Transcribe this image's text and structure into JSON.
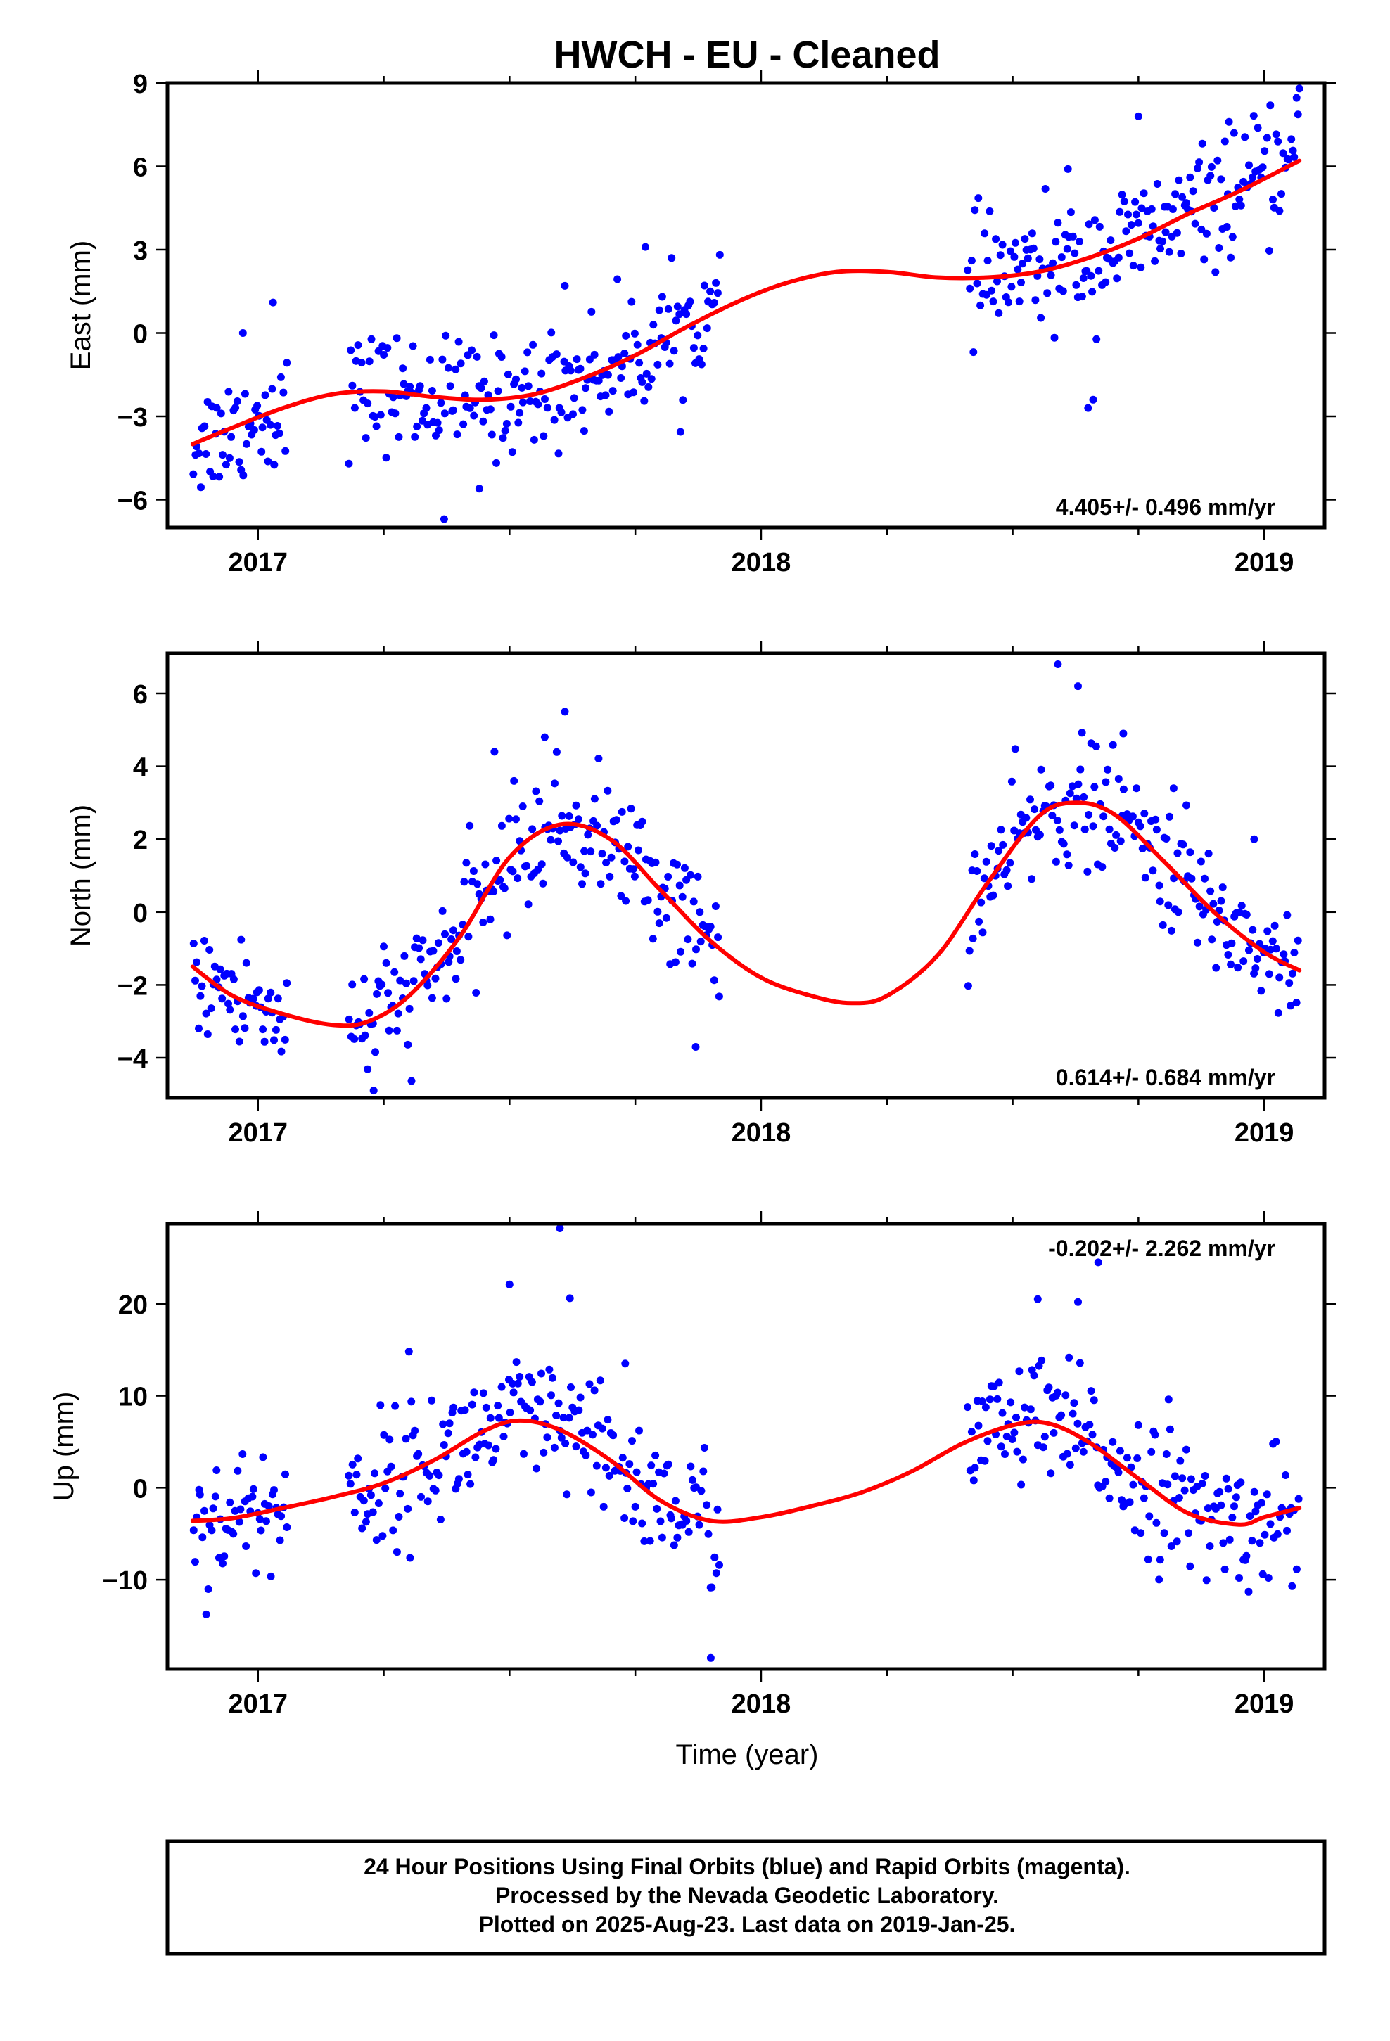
{
  "chart_data": {
    "title": "HWCH  - EU - Cleaned",
    "type": "scatter",
    "xlabel": "Time (year)",
    "xlim": [
      2016.82,
      2019.12
    ],
    "xticks": [
      2017,
      2018,
      2019
    ],
    "xtick_labels": [
      "2017",
      "2018",
      "2019"
    ],
    "colors": {
      "points": "#0000ff",
      "fit": "#ff0000",
      "frame": "#000000"
    },
    "panels": [
      {
        "id": "east",
        "ylabel": "East (mm)",
        "ylim": [
          -7,
          9
        ],
        "yticks": [
          -6,
          -3,
          0,
          3,
          6,
          9
        ],
        "ytick_labels": [
          "−6",
          "−3",
          "0",
          "3",
          "6",
          "9"
        ],
        "rate_label": "4.405+/- 0.496 mm/yr",
        "rate_position": "bottom-right",
        "data_segments": [
          [
            2016.87,
            2017.06
          ],
          [
            2017.18,
            2017.92
          ],
          [
            2018.41,
            2019.07
          ]
        ],
        "scatter_sd": 1.05,
        "outliers": [
          [
            2016.97,
            0.0
          ],
          [
            2017.03,
            1.1
          ],
          [
            2017.37,
            -6.7
          ],
          [
            2017.61,
            1.7
          ],
          [
            2017.77,
            3.1
          ],
          [
            2018.61,
            5.9
          ],
          [
            2018.65,
            -2.7
          ],
          [
            2018.75,
            7.8
          ],
          [
            2018.93,
            7.6
          ],
          [
            2019.07,
            8.8
          ],
          [
            2018.66,
            -2.4
          ],
          [
            2017.44,
            -5.6
          ]
        ],
        "fit": {
          "x": [
            2016.87,
            2016.95,
            2017.05,
            2017.15,
            2017.25,
            2017.35,
            2017.45,
            2017.55,
            2017.65,
            2017.75,
            2017.85,
            2017.95,
            2018.05,
            2018.15,
            2018.25,
            2018.35,
            2018.45,
            2018.55,
            2018.65,
            2018.75,
            2018.85,
            2018.95,
            2019.07
          ],
          "y": [
            -4.0,
            -3.4,
            -2.7,
            -2.2,
            -2.1,
            -2.3,
            -2.4,
            -2.2,
            -1.6,
            -0.8,
            0.2,
            1.1,
            1.8,
            2.2,
            2.2,
            2.0,
            2.0,
            2.2,
            2.7,
            3.4,
            4.3,
            5.1,
            6.2
          ]
        }
      },
      {
        "id": "north",
        "ylabel": "North (mm)",
        "ylim": [
          -5.1,
          7.1
        ],
        "yticks": [
          -4,
          -2,
          0,
          2,
          4,
          6
        ],
        "ytick_labels": [
          "−4",
          "−2",
          "0",
          "2",
          "4",
          "6"
        ],
        "rate_label": "0.614+/- 0.684 mm/yr",
        "rate_position": "bottom-right",
        "data_segments": [
          [
            2016.87,
            2017.06
          ],
          [
            2017.18,
            2017.92
          ],
          [
            2018.41,
            2019.07
          ]
        ],
        "scatter_sd": 0.85,
        "outliers": [
          [
            2017.61,
            5.5
          ],
          [
            2017.57,
            4.8
          ],
          [
            2018.59,
            6.8
          ],
          [
            2018.63,
            6.2
          ],
          [
            2018.72,
            4.9
          ],
          [
            2017.47,
            4.4
          ],
          [
            2017.23,
            -4.9
          ],
          [
            2017.87,
            -3.7
          ],
          [
            2018.82,
            3.4
          ],
          [
            2018.98,
            2.0
          ]
        ],
        "fit": {
          "x": [
            2016.87,
            2016.95,
            2017.05,
            2017.15,
            2017.22,
            2017.3,
            2017.4,
            2017.5,
            2017.6,
            2017.7,
            2017.8,
            2017.9,
            2018.0,
            2018.1,
            2018.18,
            2018.25,
            2018.35,
            2018.45,
            2018.55,
            2018.62,
            2018.7,
            2018.8,
            2018.9,
            2019.0,
            2019.07
          ],
          "y": [
            -1.5,
            -2.3,
            -2.8,
            -3.1,
            -3.0,
            -2.3,
            -0.7,
            1.5,
            2.4,
            2.0,
            0.6,
            -0.8,
            -1.8,
            -2.3,
            -2.5,
            -2.3,
            -1.2,
            0.8,
            2.6,
            3.0,
            2.7,
            1.4,
            0.0,
            -1.1,
            -1.6
          ]
        }
      },
      {
        "id": "up",
        "ylabel": "Up (mm)",
        "ylim": [
          -19.7,
          28.7
        ],
        "yticks": [
          -10,
          0,
          10,
          20
        ],
        "ytick_labels": [
          "−10",
          "0",
          "10",
          "20"
        ],
        "rate_label": "-0.202+/- 2.262 mm/yr",
        "rate_position": "top-right",
        "data_segments": [
          [
            2016.87,
            2017.06
          ],
          [
            2017.18,
            2017.92
          ],
          [
            2018.41,
            2019.07
          ]
        ],
        "scatter_sd": 3.6,
        "outliers": [
          [
            2017.6,
            28.2
          ],
          [
            2017.5,
            22.1
          ],
          [
            2017.62,
            20.6
          ],
          [
            2017.9,
            -18.5
          ],
          [
            2018.63,
            20.2
          ],
          [
            2018.67,
            24.5
          ],
          [
            2018.55,
            20.5
          ],
          [
            2017.3,
            14.8
          ],
          [
            2017.73,
            13.5
          ],
          [
            2018.81,
            9.6
          ]
        ],
        "fit": {
          "x": [
            2016.87,
            2016.95,
            2017.05,
            2017.15,
            2017.25,
            2017.35,
            2017.45,
            2017.52,
            2017.6,
            2017.7,
            2017.8,
            2017.9,
            2018.0,
            2018.1,
            2018.2,
            2018.3,
            2018.4,
            2018.5,
            2018.57,
            2018.65,
            2018.75,
            2018.85,
            2018.95,
            2019.0,
            2019.07
          ],
          "y": [
            -3.6,
            -3.3,
            -2.2,
            -1.0,
            0.5,
            3.0,
            6.2,
            7.3,
            6.3,
            3.0,
            -1.4,
            -3.6,
            -3.2,
            -2.0,
            -0.5,
            1.8,
            4.8,
            6.8,
            7.0,
            5.0,
            1.0,
            -2.8,
            -4.0,
            -3.2,
            -2.2
          ]
        }
      }
    ]
  },
  "footer": {
    "line1": "24 Hour Positions Using Final Orbits (blue) and Rapid Orbits (magenta).",
    "line2": "Processed by the Nevada Geodetic Laboratory.",
    "line3": "Plotted on 2025-Aug-23. Last data on 2019-Jan-25."
  }
}
